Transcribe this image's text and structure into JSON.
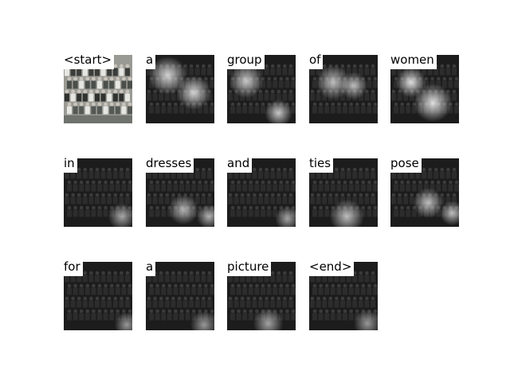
{
  "figure": {
    "panels": [
      {
        "word": "<start>",
        "kind": "photo"
      },
      {
        "word": "a",
        "kind": "attention",
        "attention_level": 0.55
      },
      {
        "word": "group",
        "kind": "attention",
        "attention_level": 0.5
      },
      {
        "word": "of",
        "kind": "attention",
        "attention_level": 0.45
      },
      {
        "word": "women",
        "kind": "attention",
        "attention_level": 0.6
      },
      {
        "word": "in",
        "kind": "attention",
        "attention_level": 0.35
      },
      {
        "word": "dresses",
        "kind": "attention",
        "attention_level": 0.4
      },
      {
        "word": "and",
        "kind": "attention",
        "attention_level": 0.35
      },
      {
        "word": "ties",
        "kind": "attention",
        "attention_level": 0.45
      },
      {
        "word": "pose",
        "kind": "attention",
        "attention_level": 0.45
      },
      {
        "word": "for",
        "kind": "attention",
        "attention_level": 0.3
      },
      {
        "word": "a",
        "kind": "attention",
        "attention_level": 0.3
      },
      {
        "word": "picture",
        "kind": "attention",
        "attention_level": 0.35
      },
      {
        "word": "<end>",
        "kind": "attention",
        "attention_level": 0.3
      }
    ],
    "colors": {
      "background": "#ffffff",
      "label": "#000000"
    }
  }
}
